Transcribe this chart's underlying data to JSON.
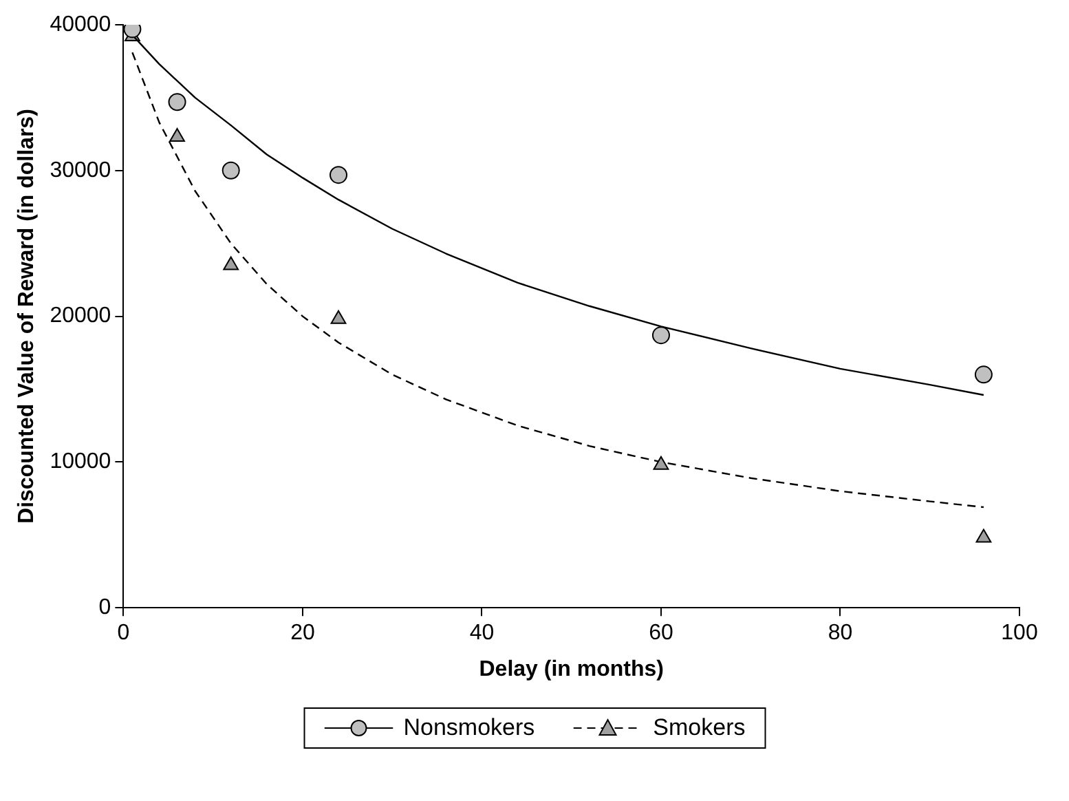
{
  "chart_data": {
    "type": "scatter",
    "xlabel": "Delay (in months)",
    "ylabel": "Discounted Value of Reward (in dollars)",
    "xlim": [
      0,
      100
    ],
    "xticks": [
      0,
      20,
      40,
      60,
      80,
      100
    ],
    "ylim": [
      0,
      40000
    ],
    "yticks": [
      0,
      10000,
      20000,
      30000,
      40000
    ],
    "grid": false,
    "legend": "bottom",
    "series": [
      {
        "name": "Nonsmokers",
        "type": "scatter",
        "marker": "circle",
        "color": "#c0c0c0",
        "x": [
          1,
          6,
          12,
          24,
          60,
          96
        ],
        "values": [
          39700,
          34700,
          30000,
          29700,
          18700,
          16000
        ]
      },
      {
        "type": "line",
        "line_style": "solid",
        "marker": "none",
        "color": "#000000",
        "x": [
          1,
          4,
          8,
          12,
          16,
          20,
          24,
          30,
          36,
          44,
          52,
          60,
          70,
          80,
          90,
          96
        ],
        "values": [
          39300,
          37300,
          35000,
          33100,
          31100,
          29500,
          28000,
          26000,
          24300,
          22300,
          20700,
          19300,
          17800,
          16400,
          15300,
          14600
        ]
      },
      {
        "name": "Smokers",
        "type": "scatter",
        "marker": "triangle",
        "color": "#a0a0a0",
        "x": [
          1,
          6,
          12,
          24,
          60,
          96
        ],
        "values": [
          39200,
          32300,
          23500,
          19800,
          9800,
          4800
        ]
      },
      {
        "type": "line",
        "line_style": "dashed",
        "marker": "none",
        "color": "#000000",
        "x": [
          1,
          4,
          8,
          12,
          16,
          20,
          24,
          30,
          36,
          44,
          52,
          60,
          70,
          80,
          90,
          96
        ],
        "values": [
          38100,
          33300,
          28600,
          25000,
          22200,
          20000,
          18200,
          16000,
          14300,
          12500,
          11100,
          10000,
          8900,
          8000,
          7300,
          6900
        ]
      }
    ]
  }
}
